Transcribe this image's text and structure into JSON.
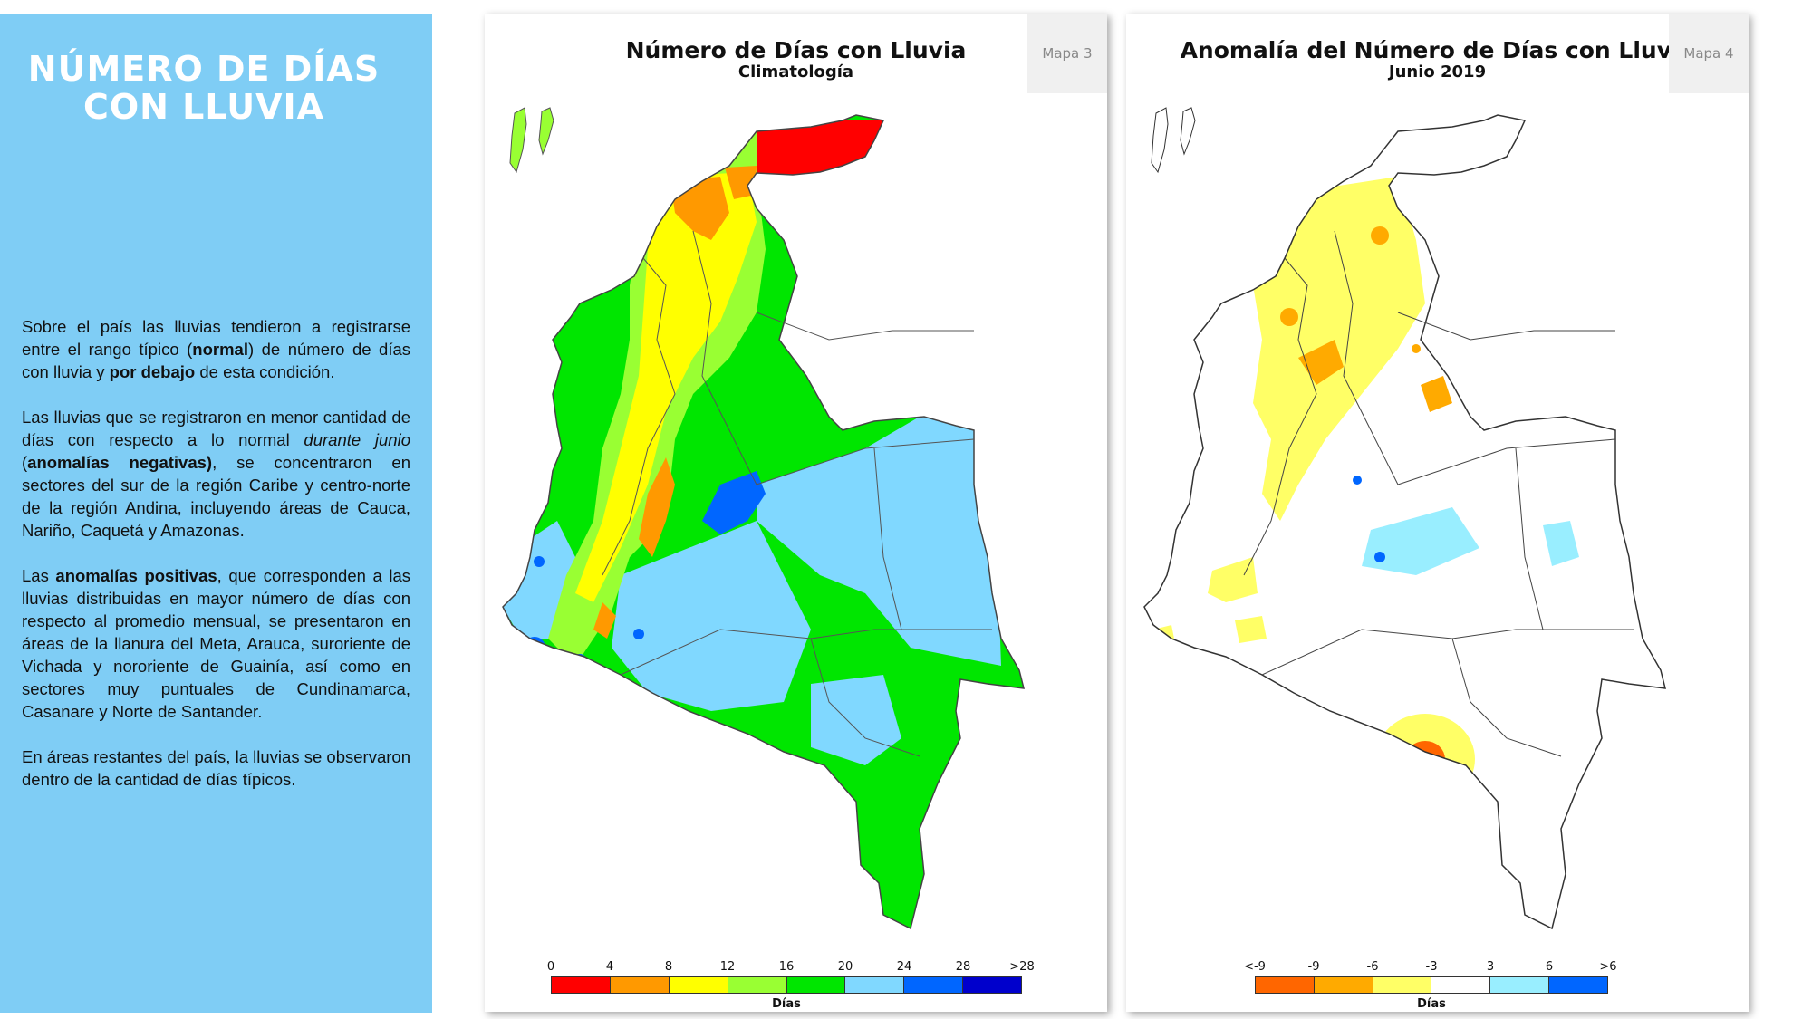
{
  "sidebar": {
    "title": "NÚMERO DE DÍAS CON LLUVIA",
    "paragraphs": [
      [
        {
          "t": "Sobre el país las lluvias tendieron a registrarse entre el rango típico ("
        },
        {
          "t": "normal",
          "b": true
        },
        {
          "t": ") de número de días con lluvia y "
        },
        {
          "t": "por debajo",
          "b": true
        },
        {
          "t": " de esta condición."
        }
      ],
      [
        {
          "t": "Las lluvias que se registraron en menor cantidad de días con respecto a lo normal "
        },
        {
          "t": "durante junio",
          "i": true
        },
        {
          "t": " ("
        },
        {
          "t": "anomalías negativas)",
          "b": true
        },
        {
          "t": ", se concentraron en sectores del sur de la región Caribe y centro-norte de la región Andina, incluyendo áreas de Cauca, Nariño, Caquetá y Amazonas."
        }
      ],
      [
        {
          "t": "Las "
        },
        {
          "t": "anomalías positivas",
          "b": true
        },
        {
          "t": ", que corresponden a las lluvias distribuidas en mayor número de días con respecto al promedio mensual, se presentaron en áreas de la llanura del Meta, Arauca, suroriente de Vichada y nororiente de Guainía, así como en sectores muy puntuales de Cundinamarca, Casanare y Norte de Santander."
        }
      ],
      [
        {
          "t": "En áreas restantes del país, la lluvias se observaron dentro de la cantidad de días típicos."
        }
      ]
    ]
  },
  "map3": {
    "title": "Número de Días con Lluvia",
    "subtitle": "Climatología",
    "tag": "Mapa 3",
    "legend": {
      "ticks": [
        "0",
        "4",
        "8",
        "12",
        "16",
        "20",
        "24",
        "28",
        ">28"
      ],
      "colors": [
        "#ff0000",
        "#ff9900",
        "#ffff00",
        "#99ff33",
        "#00e600",
        "#80d8ff",
        "#0066ff",
        "#0000cc"
      ],
      "unit": "Días"
    }
  },
  "map4": {
    "title": "Anomalía del Número de Días con Lluvia",
    "subtitle": "Junio 2019",
    "tag": "Mapa 4",
    "legend": {
      "ticks": [
        "<-9",
        "-9",
        "-6",
        "-3",
        "3",
        "6",
        ">6"
      ],
      "colors": [
        "#ff6600",
        "#ffaa00",
        "#ffff66",
        "#ffffff",
        "#99eeff",
        "#0066ff"
      ],
      "unit": "Días"
    }
  },
  "colors": {
    "sidebar_bg": "#7fcdf5",
    "green": "#00e600",
    "lightblue": "#80d8ff",
    "yellow": "#ffff00",
    "orange": "#ff9900",
    "red": "#ff0000",
    "blue": "#0066ff"
  }
}
